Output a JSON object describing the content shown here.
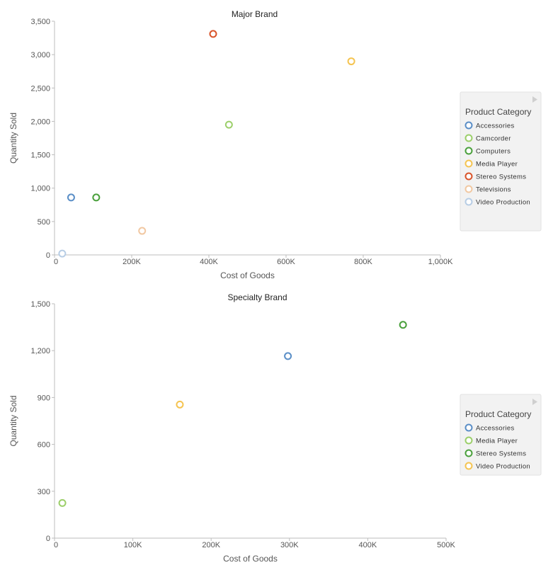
{
  "chart_data": [
    {
      "type": "scatter",
      "title": "Major Brand",
      "xlabel": "Cost of Goods",
      "ylabel": "Quantity Sold",
      "xlim": [
        0,
        1000000
      ],
      "ylim": [
        0,
        3500
      ],
      "x_ticks": [
        0,
        200000,
        400000,
        600000,
        800000,
        1000000
      ],
      "x_tick_labels": [
        "0",
        "200K",
        "400K",
        "600K",
        "800K",
        "1,000K"
      ],
      "y_ticks": [
        0,
        500,
        1000,
        1500,
        2000,
        2500,
        3000,
        3500
      ],
      "y_tick_labels": [
        "0",
        "500",
        "1,000",
        "1,500",
        "2,000",
        "2,500",
        "3,000",
        "3,500"
      ],
      "grid": false,
      "legend": {
        "title": "Product Category",
        "placement": "right"
      },
      "series": [
        {
          "name": "Accessories",
          "color": "#5b8fc7",
          "points": [
            {
              "x": 43000,
              "y": 860
            }
          ]
        },
        {
          "name": "Camcorder",
          "color": "#9ccf6a",
          "points": [
            {
              "x": 452000,
              "y": 1950
            }
          ]
        },
        {
          "name": "Computers",
          "color": "#4aa03c",
          "points": [
            {
              "x": 108000,
              "y": 860
            }
          ]
        },
        {
          "name": "Media Player",
          "color": "#f5c451",
          "points": [
            {
              "x": 769000,
              "y": 2900
            }
          ]
        },
        {
          "name": "Stereo Systems",
          "color": "#d9542a",
          "points": [
            {
              "x": 411000,
              "y": 3310
            }
          ]
        },
        {
          "name": "Televisions",
          "color": "#f1c8a2",
          "points": [
            {
              "x": 227000,
              "y": 360
            }
          ]
        },
        {
          "name": "Video Production",
          "color": "#b7cde5",
          "points": [
            {
              "x": 20000,
              "y": 20
            }
          ]
        }
      ]
    },
    {
      "type": "scatter",
      "title": "Specialty Brand",
      "xlabel": "Cost of Goods",
      "ylabel": "Quantity Sold",
      "xlim": [
        0,
        500000
      ],
      "ylim": [
        0,
        1500
      ],
      "x_ticks": [
        0,
        100000,
        200000,
        300000,
        400000,
        500000
      ],
      "x_tick_labels": [
        "0",
        "100K",
        "200K",
        "300K",
        "400K",
        "500K"
      ],
      "y_ticks": [
        0,
        300,
        600,
        900,
        1200,
        1500
      ],
      "y_tick_labels": [
        "0",
        "300",
        "600",
        "900",
        "1,200",
        "1,500"
      ],
      "grid": false,
      "legend": {
        "title": "Product Category",
        "placement": "right"
      },
      "series": [
        {
          "name": "Accessories",
          "color": "#5b8fc7",
          "points": [
            {
              "x": 298000,
              "y": 1165
            }
          ]
        },
        {
          "name": "Media Player",
          "color": "#9ccf6a",
          "points": [
            {
              "x": 10000,
              "y": 225
            }
          ]
        },
        {
          "name": "Stereo Systems",
          "color": "#4aa03c",
          "points": [
            {
              "x": 445000,
              "y": 1365
            }
          ]
        },
        {
          "name": "Video Production",
          "color": "#f5c451",
          "points": [
            {
              "x": 160000,
              "y": 855
            }
          ]
        }
      ]
    }
  ]
}
